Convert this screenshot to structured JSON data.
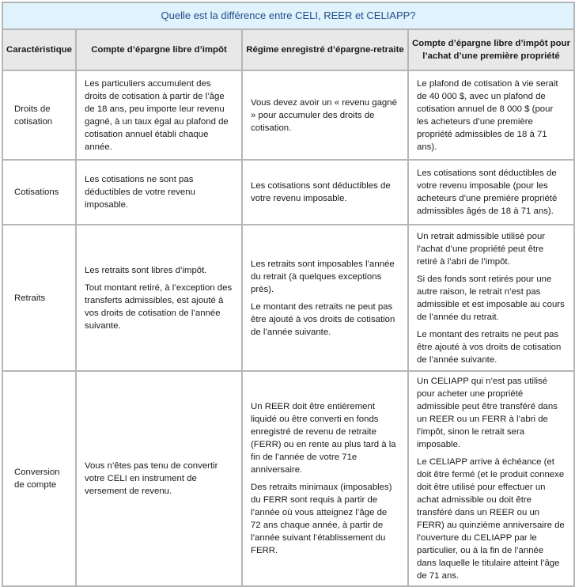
{
  "title": "Quelle est la différence entre CELI, REER et CELIAPP?",
  "headers": [
    "Caractéristique",
    "Compte d’épargne libre d’impôt",
    "Régime enregistré d’épargne-retraite",
    "Compte d’épargne libre d’impôt pour l’achat d’une première propriété"
  ],
  "rows": [
    {
      "feature": "Droits de cotisation",
      "celi": [
        "Les particuliers accumulent des droits de cotisation à partir de l’âge de 18 ans, peu importe leur revenu gagné, à un taux égal au plafond de cotisation annuel établi chaque année."
      ],
      "reer": [
        "Vous devez avoir un « revenu gagné » pour accumuler des droits de cotisation."
      ],
      "celiapp": [
        "Le plafond de cotisation à vie serait de 40 000 $, avec un plafond de cotisation annuel de 8 000 $ (pour les acheteurs d’une première propriété admissibles de 18 à 71 ans)."
      ]
    },
    {
      "feature": "Cotisations",
      "celi": [
        "Les cotisations ne sont pas déductibles de votre revenu imposable."
      ],
      "reer": [
        "Les cotisations sont déductibles de votre revenu imposable."
      ],
      "celiapp": [
        "Les cotisations sont déductibles de votre revenu imposable (pour les acheteurs d’une première propriété admissibles âgés de 18 à 71 ans)."
      ]
    },
    {
      "feature": "Retraits",
      "celi": [
        "Les retraits sont libres d’impôt.",
        "Tout montant retiré, à l’exception des transferts admissibles, est ajouté à vos droits de cotisation de l’année suivante."
      ],
      "reer": [
        "Les retraits sont imposables l’année du retrait (à quelques exceptions près).",
        "Le montant des retraits ne peut pas être ajouté à vos droits de cotisation de l’année suivante."
      ],
      "celiapp": [
        "Un retrait admissible utilisé pour l’achat d’une propriété peut être retiré à l’abri de l’impôt.",
        "Si des fonds sont retirés pour une autre raison, le retrait n’est pas admissible et est imposable au cours de l’année du retrait.",
        "Le montant des retraits ne peut pas être ajouté à vos droits de cotisation de l’année suivante."
      ]
    },
    {
      "feature": "Conversion de compte",
      "celi": [
        "Vous n’êtes pas tenu de convertir votre CELI en instrument de versement de revenu."
      ],
      "reer": [
        "Un REER doit être entièrement liquidé ou être converti en fonds enregistré de revenu de retraite (FERR) ou en rente au plus tard à la fin de l’année de votre 71e anniversaire.",
        "Des retraits minimaux (imposables) du FERR sont requis à partir de l’année où vous atteignez l’âge de 72 ans chaque année, à partir de l’année suivant l’établissement du FERR."
      ],
      "celiapp": [
        "Un CELIAPP qui n’est pas utilisé pour acheter une propriété admissible peut être transféré dans un REER ou un FERR à l’abri de l’impôt, sinon le retrait sera imposable.",
        "Le CELIAPP arrive à échéance (et doit être fermé (et le produit connexe doit être utilisé pour effectuer un achat admissible ou doit être transféré dans un REER ou un FERR) au quinzième anniversaire de l’ouverture du CELIAPP par le particulier, ou à la fin de l’année dans laquelle le titulaire atteint l’âge de 71 ans."
      ]
    }
  ]
}
